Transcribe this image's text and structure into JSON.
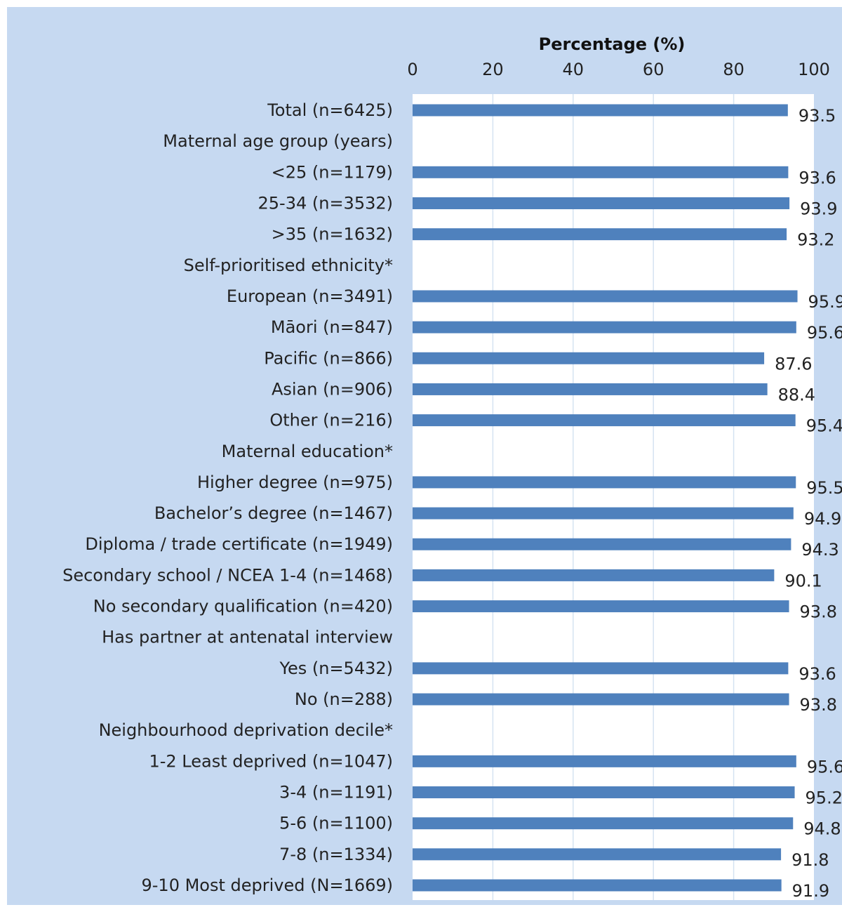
{
  "chart_data": {
    "type": "bar",
    "orientation": "horizontal",
    "x_axis_title": "Percentage (%)",
    "xlim": [
      0,
      100
    ],
    "x_ticks": [
      "0",
      "20",
      "40",
      "60",
      "80",
      "100"
    ],
    "x_axis_position": "top",
    "gridlines": true,
    "colors": {
      "bar": "#4f81bd",
      "panel": "#c6d9f1",
      "plot": "#ffffff",
      "grid": "#d5e3f2"
    },
    "rows": [
      {
        "label": "Total (n=6425)",
        "value": 93.5,
        "value_label": "93.5"
      },
      {
        "label": "Maternal age group (years)",
        "value": null,
        "value_label": ""
      },
      {
        "label": "<25 (n=1179)",
        "value": 93.6,
        "value_label": "93.6"
      },
      {
        "label": "25-34 (n=3532)",
        "value": 93.9,
        "value_label": "93.9"
      },
      {
        "label": ">35 (n=1632)",
        "value": 93.2,
        "value_label": "93.2"
      },
      {
        "label": "Self-prioritised ethnicity*",
        "value": null,
        "value_label": ""
      },
      {
        "label": "European (n=3491)",
        "value": 95.9,
        "value_label": "95.9"
      },
      {
        "label": "Māori (n=847)",
        "value": 95.6,
        "value_label": "95.6"
      },
      {
        "label": "Pacific (n=866)",
        "value": 87.6,
        "value_label": "87.6"
      },
      {
        "label": "Asian (n=906)",
        "value": 88.4,
        "value_label": "88.4"
      },
      {
        "label": "Other (n=216)",
        "value": 95.4,
        "value_label": "95.4"
      },
      {
        "label": "Maternal education*",
        "value": null,
        "value_label": ""
      },
      {
        "label": "Higher degree (n=975)",
        "value": 95.5,
        "value_label": "95.5"
      },
      {
        "label": "Bachelor’s degree (n=1467)",
        "value": 94.9,
        "value_label": "94.9"
      },
      {
        "label": "Diploma / trade certificate (n=1949)",
        "value": 94.3,
        "value_label": "94.3"
      },
      {
        "label": "Secondary school / NCEA 1-4 (n=1468)",
        "value": 90.1,
        "value_label": "90.1"
      },
      {
        "label": "No secondary qualification (n=420)",
        "value": 93.8,
        "value_label": "93.8"
      },
      {
        "label": "Has partner at antenatal interview",
        "value": null,
        "value_label": ""
      },
      {
        "label": "Yes (n=5432)",
        "value": 93.6,
        "value_label": "93.6"
      },
      {
        "label": "No (n=288)",
        "value": 93.8,
        "value_label": "93.8"
      },
      {
        "label": "Neighbourhood deprivation decile*",
        "value": null,
        "value_label": ""
      },
      {
        "label": "1-2 Least deprived (n=1047)",
        "value": 95.6,
        "value_label": "95.6"
      },
      {
        "label": "3-4 (n=1191)",
        "value": 95.2,
        "value_label": "95.2"
      },
      {
        "label": "5-6 (n=1100)",
        "value": 94.8,
        "value_label": "94.8"
      },
      {
        "label": "7-8 (n=1334)",
        "value": 91.8,
        "value_label": "91.8"
      },
      {
        "label": "9-10 Most deprived (N=1669)",
        "value": 91.9,
        "value_label": "91.9"
      }
    ]
  }
}
